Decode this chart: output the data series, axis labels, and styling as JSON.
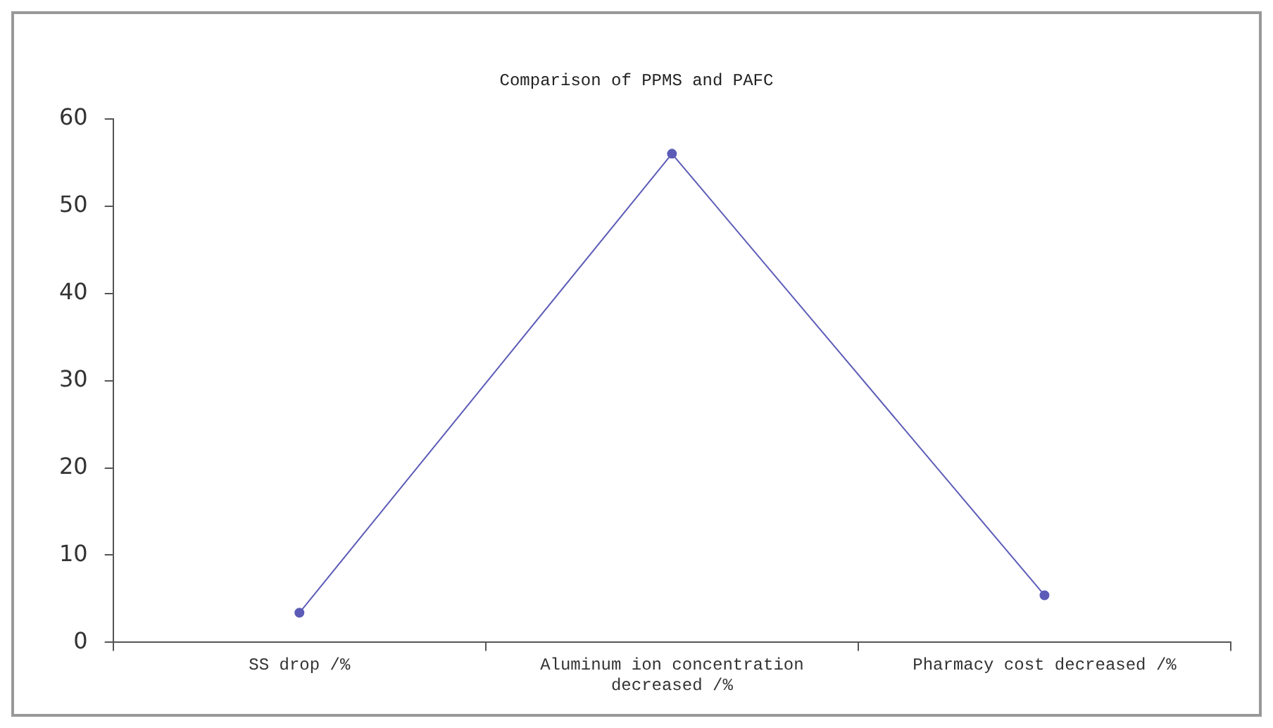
{
  "chart_data": {
    "type": "line",
    "title": "Comparison of PPMS and PAFC",
    "categories": [
      "SS drop /%",
      "Aluminum ion concentration decreased /%",
      "Pharmacy cost decreased /%"
    ],
    "series": [
      {
        "color": "#5c5cb8",
        "values": [
          3.4,
          56,
          5.4
        ]
      }
    ],
    "ylim": [
      0,
      60
    ],
    "yticks": [
      0,
      10,
      20,
      30,
      40,
      50,
      60
    ],
    "grid": false,
    "legend": false,
    "marker": "circle",
    "line_style": "solid"
  }
}
